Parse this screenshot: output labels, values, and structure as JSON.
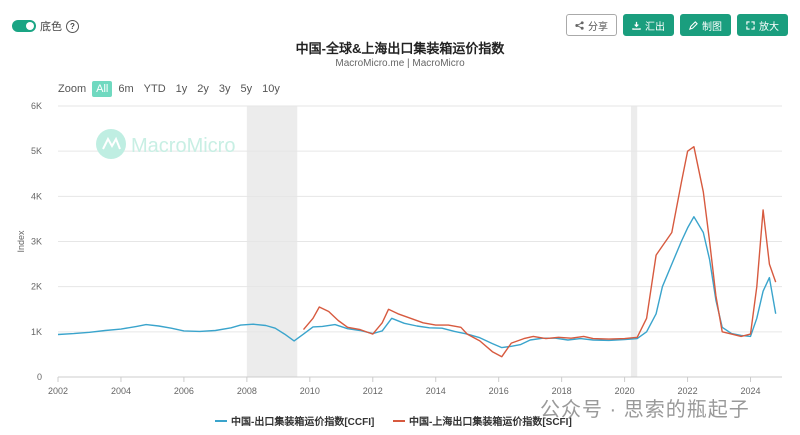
{
  "ui": {
    "toggle_label": "底色",
    "help_icon": "?",
    "buttons": [
      {
        "label": "分享",
        "icon": "share-icon",
        "style": "outline"
      },
      {
        "label": "汇出",
        "icon": "download-icon",
        "style": "solid"
      },
      {
        "label": "制图",
        "icon": "pencil-icon",
        "style": "solid"
      },
      {
        "label": "放大",
        "icon": "expand-icon",
        "style": "solid"
      }
    ],
    "zoom_label": "Zoom",
    "zoom_options": [
      "All",
      "6m",
      "YTD",
      "1y",
      "2y",
      "3y",
      "5y",
      "10y"
    ],
    "zoom_selected": "All",
    "brand_logo_text": "MacroMicro",
    "watermark": "公众号 · 思索的瓶起子"
  },
  "chart_data": {
    "type": "line",
    "title": "中国-全球&上海出口集装箱运价指数",
    "subtitle": "MacroMicro.me | MacroMicro",
    "ylabel": "Index",
    "xlabel": "",
    "ylim": [
      0,
      6000
    ],
    "yticks": [
      0,
      1000,
      2000,
      3000,
      4000,
      5000,
      6000
    ],
    "ytick_labels": [
      "0",
      "1K",
      "2K",
      "3K",
      "4K",
      "5K",
      "6K"
    ],
    "xlim": [
      2002,
      2025
    ],
    "xticks": [
      2002,
      2004,
      2006,
      2008,
      2010,
      2012,
      2014,
      2016,
      2018,
      2020,
      2022,
      2024
    ],
    "grid": true,
    "legend_position": "bottom",
    "shaded_periods": [
      [
        2008.0,
        2009.6
      ],
      [
        2020.2,
        2020.4
      ]
    ],
    "series": [
      {
        "name": "中国-出口集装箱运价指数[CCFI]",
        "color": "#3aa4cc",
        "x": [
          2002.0,
          2002.5,
          2003.0,
          2003.5,
          2004.0,
          2004.5,
          2004.8,
          2005.2,
          2005.6,
          2006.0,
          2006.5,
          2007.0,
          2007.5,
          2007.8,
          2008.2,
          2008.6,
          2008.9,
          2009.2,
          2009.5,
          2009.8,
          2010.1,
          2010.4,
          2010.8,
          2011.2,
          2011.6,
          2012.0,
          2012.3,
          2012.6,
          2013.0,
          2013.4,
          2013.8,
          2014.2,
          2014.6,
          2015.0,
          2015.4,
          2015.8,
          2016.1,
          2016.4,
          2016.7,
          2017.0,
          2017.4,
          2017.8,
          2018.2,
          2018.6,
          2019.0,
          2019.5,
          2020.0,
          2020.4,
          2020.7,
          2021.0,
          2021.2,
          2021.5,
          2021.8,
          2022.0,
          2022.2,
          2022.5,
          2022.7,
          2022.9,
          2023.1,
          2023.4,
          2023.7,
          2024.0,
          2024.2,
          2024.4,
          2024.6,
          2024.8
        ],
        "values": [
          940,
          960,
          990,
          1030,
          1060,
          1120,
          1160,
          1130,
          1080,
          1020,
          1010,
          1030,
          1090,
          1150,
          1170,
          1140,
          1080,
          950,
          800,
          950,
          1110,
          1120,
          1160,
          1070,
          1030,
          960,
          1020,
          1300,
          1190,
          1130,
          1090,
          1080,
          1010,
          950,
          870,
          740,
          650,
          680,
          720,
          820,
          860,
          860,
          820,
          850,
          820,
          810,
          830,
          850,
          1000,
          1400,
          2000,
          2500,
          3000,
          3300,
          3550,
          3200,
          2600,
          1700,
          1100,
          960,
          920,
          900,
          1300,
          1900,
          2200,
          1400
        ]
      },
      {
        "name": "中国-上海出口集装箱运价指数[SCFI]",
        "color": "#d75a3f",
        "x": [
          2009.8,
          2010.1,
          2010.3,
          2010.6,
          2010.9,
          2011.2,
          2011.6,
          2012.0,
          2012.3,
          2012.5,
          2012.8,
          2013.2,
          2013.6,
          2014.0,
          2014.4,
          2014.8,
          2015.0,
          2015.4,
          2015.8,
          2016.1,
          2016.4,
          2016.6,
          2016.8,
          2017.1,
          2017.5,
          2017.9,
          2018.3,
          2018.7,
          2019.0,
          2019.5,
          2020.0,
          2020.4,
          2020.7,
          2021.0,
          2021.2,
          2021.5,
          2021.8,
          2022.0,
          2022.2,
          2022.5,
          2022.7,
          2022.9,
          2023.1,
          2023.4,
          2023.7,
          2024.0,
          2024.2,
          2024.4,
          2024.6,
          2024.8
        ],
        "values": [
          1050,
          1300,
          1550,
          1450,
          1250,
          1100,
          1050,
          950,
          1200,
          1500,
          1400,
          1300,
          1200,
          1150,
          1150,
          1100,
          950,
          800,
          560,
          450,
          750,
          800,
          850,
          900,
          850,
          880,
          860,
          900,
          850,
          840,
          850,
          880,
          1300,
          2700,
          2900,
          3200,
          4300,
          5000,
          5100,
          4100,
          3000,
          1800,
          1000,
          950,
          900,
          950,
          2000,
          3700,
          2500,
          2100
        ]
      }
    ]
  }
}
